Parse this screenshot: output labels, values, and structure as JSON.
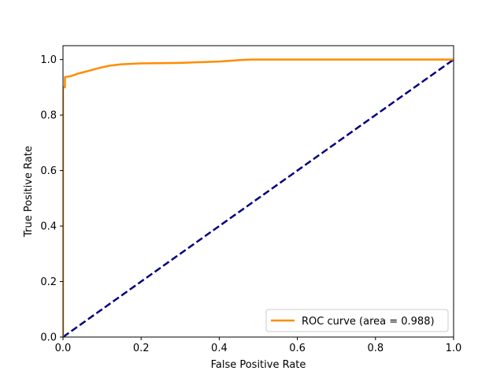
{
  "chart_data": {
    "type": "line",
    "title": "",
    "xlabel": "False Positive Rate",
    "ylabel": "True Positive Rate",
    "xlim": [
      0.0,
      1.0
    ],
    "ylim": [
      0.0,
      1.05
    ],
    "x_ticks": [
      "0.0",
      "0.2",
      "0.4",
      "0.6",
      "0.8",
      "1.0"
    ],
    "y_ticks": [
      "0.0",
      "0.2",
      "0.4",
      "0.6",
      "0.8",
      "1.0"
    ],
    "grid": false,
    "legend_position": "lower-right",
    "series": [
      {
        "name": "ROC curve (area = 0.988)",
        "color": "#ff8c00",
        "style": "solid",
        "x": [
          0.0,
          0.0,
          0.005,
          0.005,
          0.02,
          0.04,
          0.06,
          0.08,
          0.1,
          0.12,
          0.15,
          0.2,
          0.3,
          0.4,
          0.45,
          0.48,
          0.5,
          0.6,
          0.8,
          1.0
        ],
        "y": [
          0.0,
          0.9,
          0.9,
          0.937,
          0.94,
          0.95,
          0.957,
          0.965,
          0.972,
          0.978,
          0.983,
          0.986,
          0.988,
          0.993,
          0.998,
          1.0,
          1.0,
          1.0,
          1.0,
          1.0
        ]
      },
      {
        "name": "",
        "color": "#000080",
        "style": "dashed",
        "x": [
          0.0,
          1.0
        ],
        "y": [
          0.0,
          1.0
        ]
      }
    ]
  }
}
